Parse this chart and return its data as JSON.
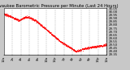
{
  "title": "Milwaukee Barometric Pressure per Minute (Last 24 Hours)",
  "line_color": "#ff0000",
  "background_color": "#c8c8c8",
  "plot_bg_color": "#ffffff",
  "grid_color": "#999999",
  "y_min": 29.35,
  "y_max": 30.05,
  "num_points": 1440,
  "title_fontsize": 3.8,
  "tick_fontsize": 2.8,
  "y_ticks": [
    29.35,
    29.4,
    29.45,
    29.5,
    29.55,
    29.6,
    29.65,
    29.7,
    29.75,
    29.8,
    29.85,
    29.9,
    29.95,
    30.0,
    30.05
  ],
  "x_tick_hours": [
    0,
    2,
    4,
    6,
    8,
    10,
    12,
    14,
    16,
    18,
    20,
    22,
    24
  ],
  "x_tick_labels": [
    "12a",
    "2a",
    "4a",
    "6a",
    "8a",
    "10a",
    "12p",
    "2p",
    "4p",
    "6p",
    "8p",
    "10p",
    "12a"
  ]
}
